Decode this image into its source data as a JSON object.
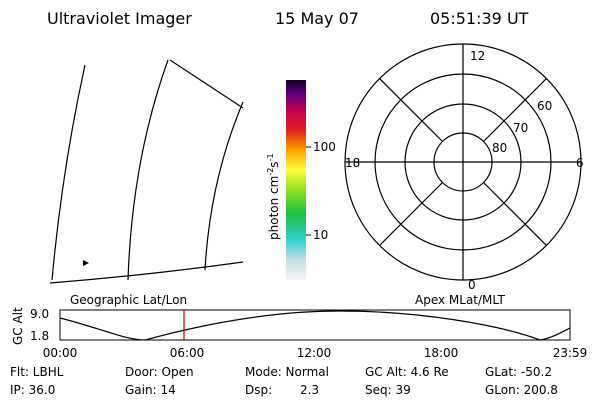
{
  "header": {
    "instrument": "Ultraviolet Imager",
    "date": "15 May 07",
    "time": "05:51:39 UT"
  },
  "colorbar": {
    "label": {
      "unit1": "photon cm",
      "exp1": "-2",
      "unit2": "s",
      "exp2": "-1"
    },
    "ticks": [
      "100",
      "10"
    ]
  },
  "polar": {
    "mlt_labels": [
      "12",
      "18",
      "6",
      "0"
    ],
    "mlat_labels": [
      "60",
      "70",
      "80"
    ]
  },
  "map_labels": {
    "left": "Geographic Lat/Lon",
    "right": "Apex MLat/MLT"
  },
  "altitude_plot": {
    "label": "GC Alt",
    "y_labels": [
      "9.0",
      "1.8"
    ],
    "x_labels": [
      "00:00",
      "06:00",
      "12:00",
      "18:00",
      "23:59"
    ]
  },
  "footer": {
    "flt": "Flt: LBHL",
    "ip": "IP: 36.0",
    "door": "Door: Open",
    "gain": "Gain: 14",
    "mode": "Mode: Normal",
    "dsp_label": "Dsp:",
    "dsp_value": "2.3",
    "gc_alt": "GC Alt: 4.6 Re",
    "seq": "Seq: 39",
    "glat": "GLat: -50.2",
    "glon": "GLon: 200.8"
  }
}
